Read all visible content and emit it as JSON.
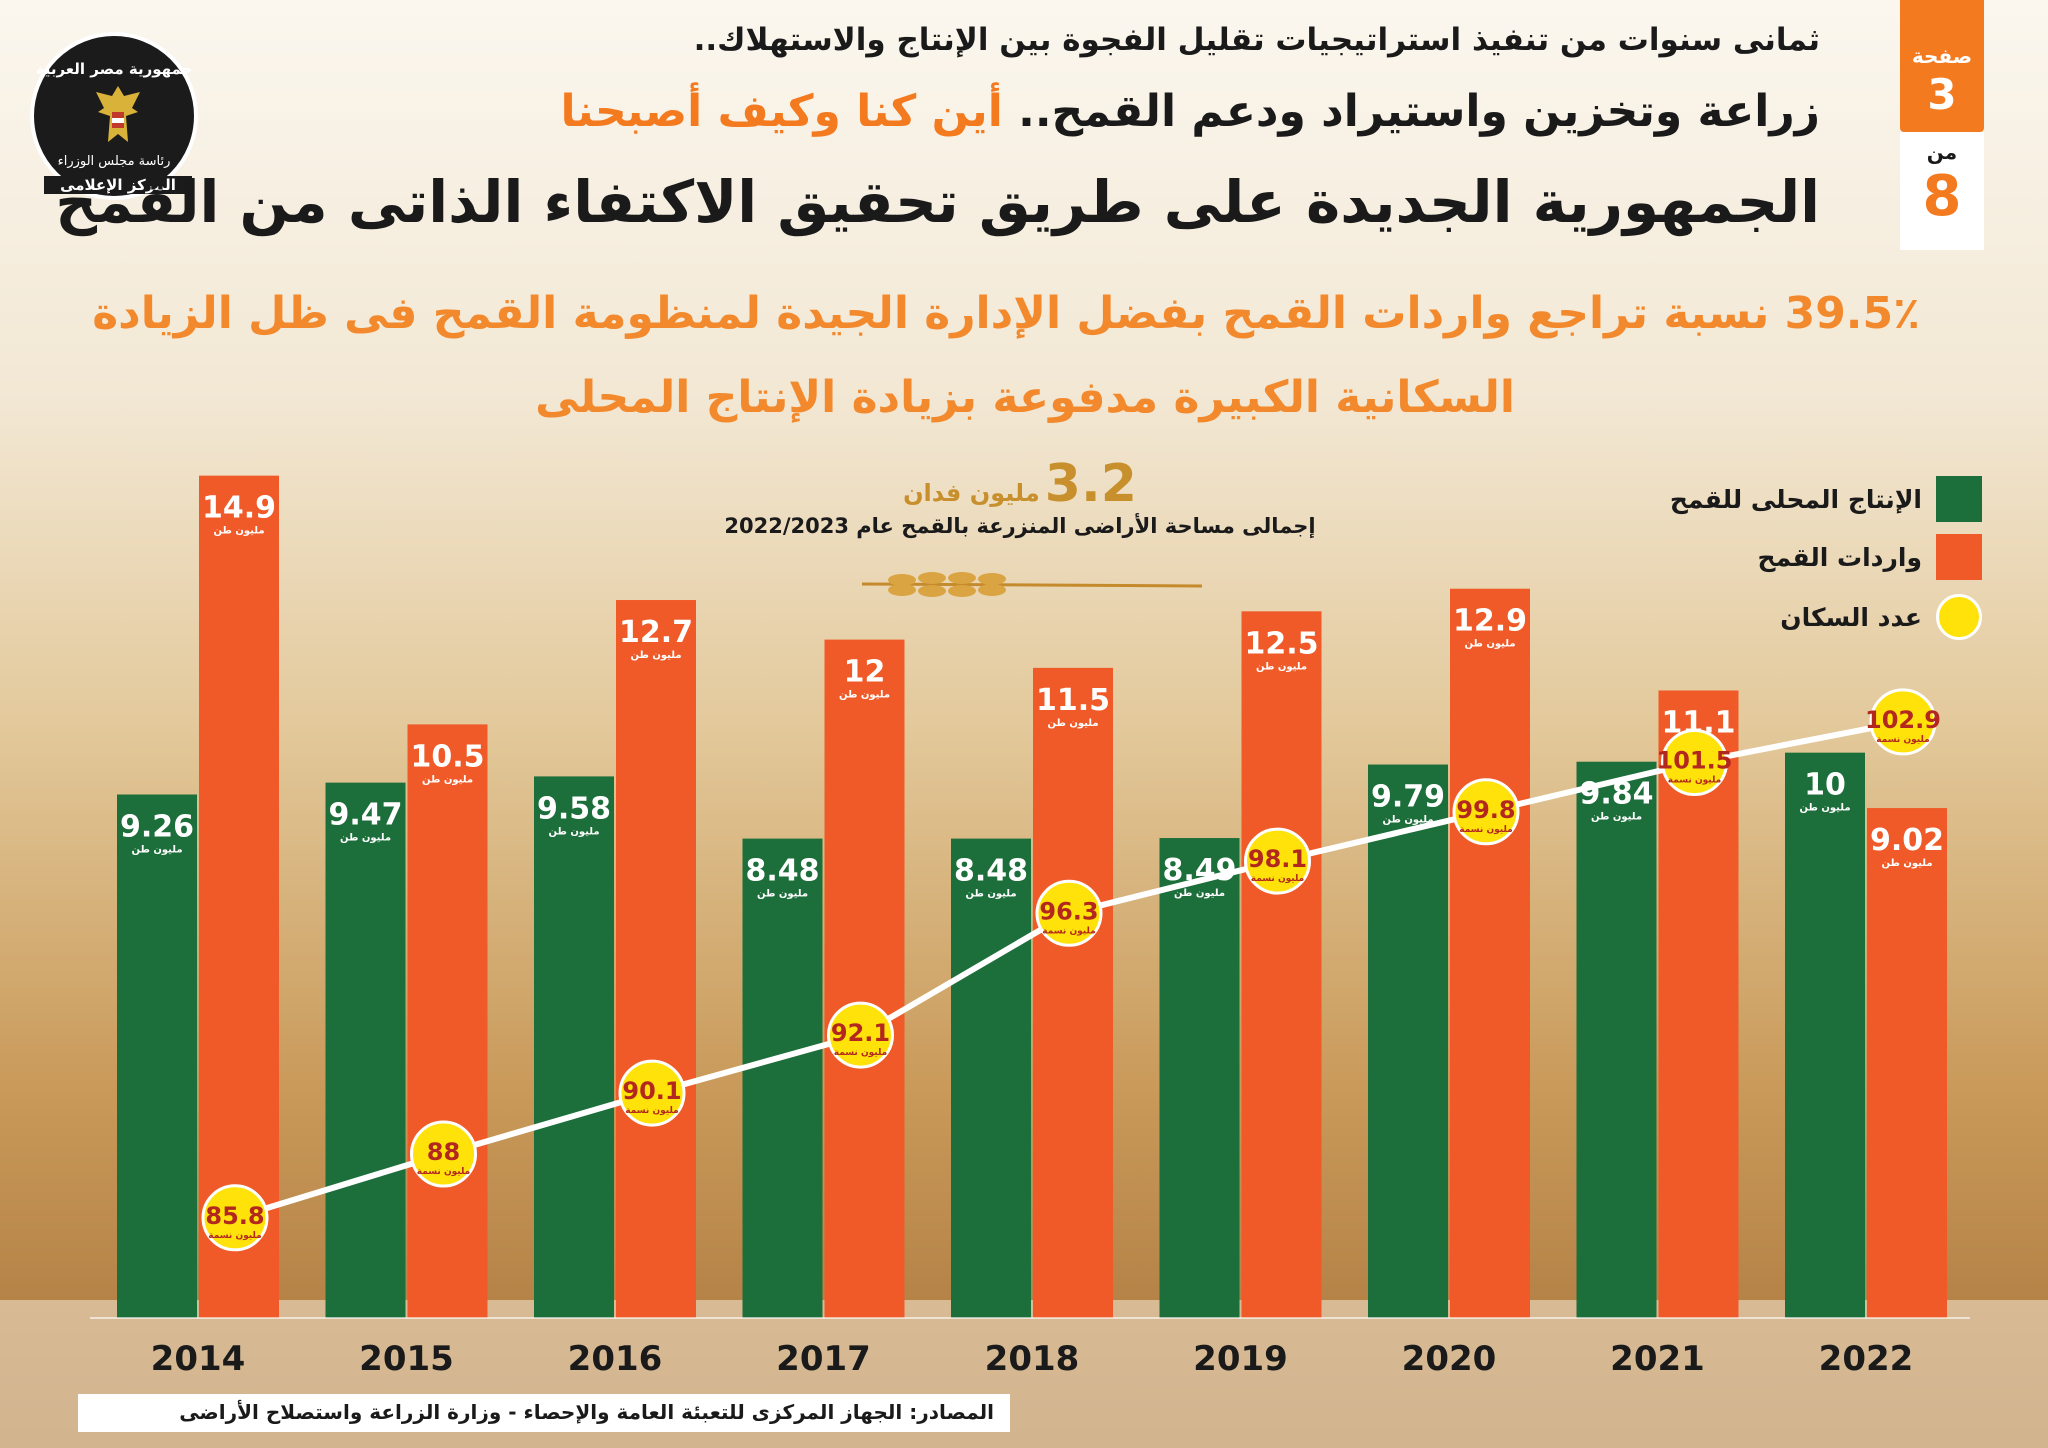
{
  "header": {
    "kicker": "ثمانى سنوات من تنفيذ استراتيجيات تقليل الفجوة بين الإنتاج والاستهلاك..",
    "subtitle_a": "زراعة وتخزين واستيراد ودعم القمح..",
    "subtitle_b": "أين كنا وكيف أصبحنا",
    "title": "الجمهورية الجديدة على طريق تحقيق الاكتفاء الذاتى من القمح"
  },
  "logo": {
    "top_text": "جمهورية مصر العربية",
    "mid_text": "رئاسة مجلس الوزراء",
    "bottom_text": "المركز الإعلامى"
  },
  "page_badge": {
    "page_word": "صفحة",
    "page_num": "3",
    "of_word": "من",
    "total": "8"
  },
  "headline": {
    "line1": "39.5٪ نسبة تراجع واردات القمح بفضل الإدارة الجيدة لمنظومة القمح فى ظل الزيادة",
    "line2": "السكانية الكبيرة مدفوعة بزيادة الإنتاج المحلى"
  },
  "area_note": {
    "value": "3.2",
    "unit": "مليون فدان",
    "caption": "إجمالى مساحة الأراضى المنزرعة بالقمح عام 2022/2023"
  },
  "legend": {
    "production": "الإنتاج المحلى للقمح",
    "imports": "واردات القمح",
    "population": "عدد السكان"
  },
  "source": "المصادر: الجهاز المركزى للتعبئة العامة والإحصاء - وزارة الزراعة واستصلاح الأراضى",
  "colors": {
    "production": "#1c6e3a",
    "imports": "#ef5a28",
    "population_marker": "#ffe20a",
    "population_text": "#b3281e",
    "accent": "#f47a20"
  },
  "chart_data": {
    "type": "bar",
    "categories": [
      "2014",
      "2015",
      "2016",
      "2017",
      "2018",
      "2019",
      "2020",
      "2021",
      "2022"
    ],
    "series": [
      {
        "name": "الإنتاج المحلى للقمح",
        "type": "bar",
        "unit": "مليون طن",
        "values": [
          9.26,
          9.47,
          9.58,
          8.48,
          8.48,
          8.49,
          9.79,
          9.84,
          10
        ]
      },
      {
        "name": "واردات القمح",
        "type": "bar",
        "unit": "مليون طن",
        "values": [
          14.9,
          10.5,
          12.7,
          12,
          11.5,
          12.5,
          12.9,
          11.1,
          9.02
        ]
      },
      {
        "name": "عدد السكان",
        "type": "line",
        "unit": "مليون نسمة",
        "values": [
          85.8,
          88,
          90.1,
          92.1,
          96.3,
          98.1,
          99.8,
          101.5,
          102.9
        ]
      }
    ],
    "grid": false,
    "legend_position": "top-right"
  }
}
